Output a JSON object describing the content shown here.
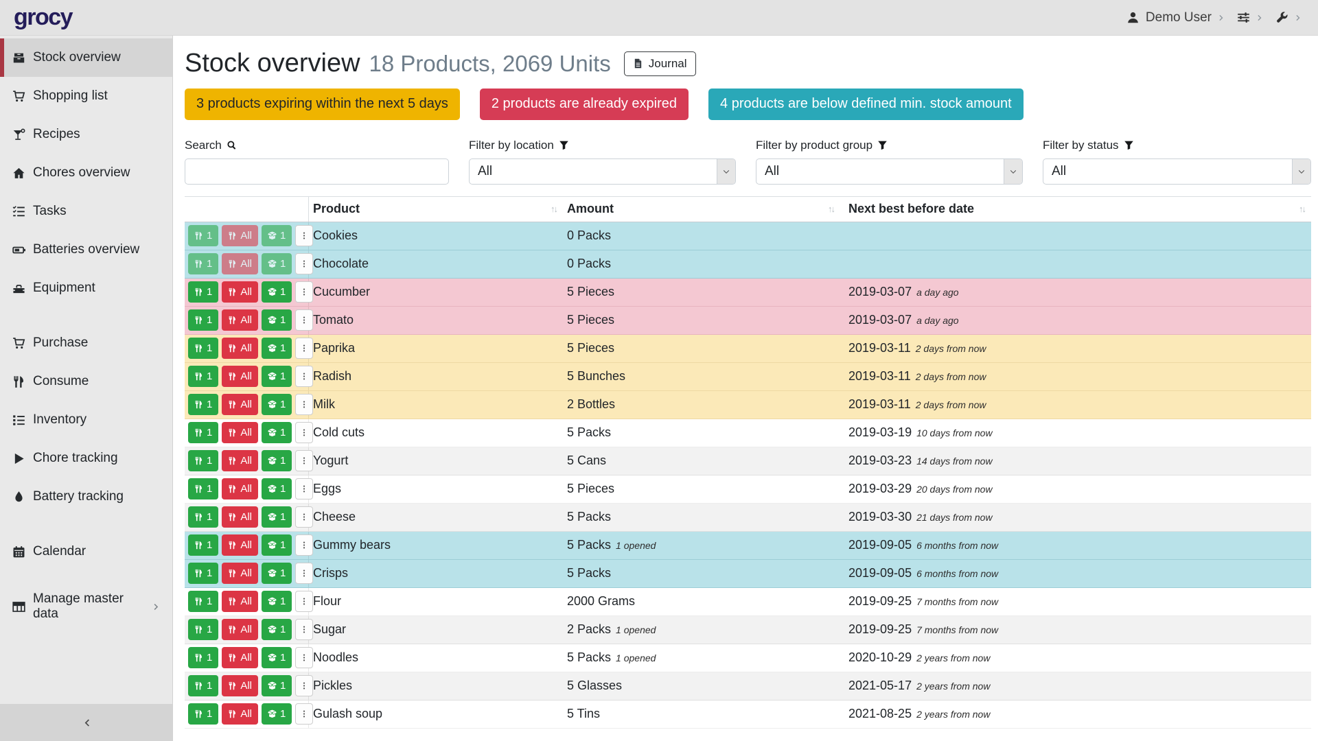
{
  "navbar": {
    "logo": "grocy",
    "user_label": "Demo User"
  },
  "sidebar": {
    "items": [
      {
        "label": "Stock overview",
        "icon": "boxes-icon",
        "active": true
      },
      {
        "label": "Shopping list",
        "icon": "cart-icon"
      },
      {
        "label": "Recipes",
        "icon": "cocktail-icon"
      },
      {
        "label": "Chores overview",
        "icon": "home-icon"
      },
      {
        "label": "Tasks",
        "icon": "tasks-icon"
      },
      {
        "label": "Batteries overview",
        "icon": "battery-icon"
      },
      {
        "label": "Equipment",
        "icon": "toolbox-icon"
      },
      {
        "label": "Purchase",
        "icon": "cart-icon",
        "gap_before": true
      },
      {
        "label": "Consume",
        "icon": "utensils-icon"
      },
      {
        "label": "Inventory",
        "icon": "list-icon"
      },
      {
        "label": "Chore tracking",
        "icon": "play-icon"
      },
      {
        "label": "Battery tracking",
        "icon": "droplet-icon"
      },
      {
        "label": "Calendar",
        "icon": "calendar-icon",
        "gap_before": true
      },
      {
        "label": "Manage master data",
        "icon": "table-icon",
        "chevron": true,
        "gap_before": true
      }
    ]
  },
  "header": {
    "title": "Stock overview",
    "subtitle": "18 Products, 2069 Units",
    "journal_button": {
      "label": "Journal"
    }
  },
  "alerts": [
    {
      "text": "3 products expiring within the next 5 days",
      "type": "warning"
    },
    {
      "text": "2 products are already expired",
      "type": "danger"
    },
    {
      "text": "4 products are below defined min. stock amount",
      "type": "info"
    }
  ],
  "filters": {
    "search": {
      "label": "Search",
      "value": "",
      "placeholder": ""
    },
    "location": {
      "label": "Filter by location",
      "value": "All"
    },
    "product_group": {
      "label": "Filter by product group",
      "value": "All"
    },
    "status": {
      "label": "Filter by status",
      "value": "All"
    }
  },
  "table": {
    "columns": [
      "Product",
      "Amount",
      "Next best before date"
    ],
    "row_actions": [
      {
        "label": "1",
        "icon": "utensils-icon",
        "name": "consume-one-button",
        "style": "success"
      },
      {
        "label": "All",
        "icon": "utensils-icon",
        "name": "consume-all-button",
        "style": "danger"
      },
      {
        "label": "1",
        "icon": "open-box-icon",
        "name": "open-one-button",
        "style": "success"
      },
      {
        "label": "",
        "icon": "kebab-menu-icon",
        "name": "row-menu-button",
        "style": "menu"
      }
    ],
    "rows": [
      {
        "product": "Cookies",
        "amount": "0 Packs",
        "date": "",
        "relative": "",
        "highlight": "belowmin",
        "disabled": true
      },
      {
        "product": "Chocolate",
        "amount": "0 Packs",
        "date": "",
        "relative": "",
        "highlight": "belowmin",
        "disabled": true
      },
      {
        "product": "Cucumber",
        "amount": "5 Pieces",
        "date": "2019-03-07",
        "relative": "a day ago",
        "highlight": "expired"
      },
      {
        "product": "Tomato",
        "amount": "5 Pieces",
        "date": "2019-03-07",
        "relative": "a day ago",
        "highlight": "expired"
      },
      {
        "product": "Paprika",
        "amount": "5 Pieces",
        "date": "2019-03-11",
        "relative": "2 days from now",
        "highlight": "expiring"
      },
      {
        "product": "Radish",
        "amount": "5 Bunches",
        "date": "2019-03-11",
        "relative": "2 days from now",
        "highlight": "expiring"
      },
      {
        "product": "Milk",
        "amount": "2 Bottles",
        "date": "2019-03-11",
        "relative": "2 days from now",
        "highlight": "expiring"
      },
      {
        "product": "Cold cuts",
        "amount": "5 Packs",
        "date": "2019-03-19",
        "relative": "10 days from now",
        "highlight": ""
      },
      {
        "product": "Yogurt",
        "amount": "5 Cans",
        "date": "2019-03-23",
        "relative": "14 days from now",
        "highlight": ""
      },
      {
        "product": "Eggs",
        "amount": "5 Pieces",
        "date": "2019-03-29",
        "relative": "20 days from now",
        "highlight": ""
      },
      {
        "product": "Cheese",
        "amount": "5 Packs",
        "date": "2019-03-30",
        "relative": "21 days from now",
        "highlight": ""
      },
      {
        "product": "Gummy bears",
        "amount": "5 Packs",
        "opened": "1 opened",
        "date": "2019-09-05",
        "relative": "6 months from now",
        "highlight": "belowmin"
      },
      {
        "product": "Crisps",
        "amount": "5 Packs",
        "date": "2019-09-05",
        "relative": "6 months from now",
        "highlight": "belowmin"
      },
      {
        "product": "Flour",
        "amount": "2000 Grams",
        "date": "2019-09-25",
        "relative": "7 months from now",
        "highlight": ""
      },
      {
        "product": "Sugar",
        "amount": "2 Packs",
        "opened": "1 opened",
        "date": "2019-09-25",
        "relative": "7 months from now",
        "highlight": ""
      },
      {
        "product": "Noodles",
        "amount": "5 Packs",
        "opened": "1 opened",
        "date": "2020-10-29",
        "relative": "2 years from now",
        "highlight": ""
      },
      {
        "product": "Pickles",
        "amount": "5 Glasses",
        "date": "2021-05-17",
        "relative": "2 years from now",
        "highlight": ""
      },
      {
        "product": "Gulash soup",
        "amount": "5 Tins",
        "date": "2021-08-25",
        "relative": "2 years from now",
        "highlight": ""
      }
    ]
  },
  "colors": {
    "brand": "#241d5a",
    "warning": "#efb400",
    "danger_badge": "#d63c55",
    "info_badge": "#2aa8b8",
    "btn_success": "#28a745",
    "btn_danger": "#dc3545",
    "row_belowmin": "#b9e2e9",
    "row_expired": "#f4c8d2",
    "row_expiring": "#fbe9b8",
    "active_red": "#a93743"
  }
}
